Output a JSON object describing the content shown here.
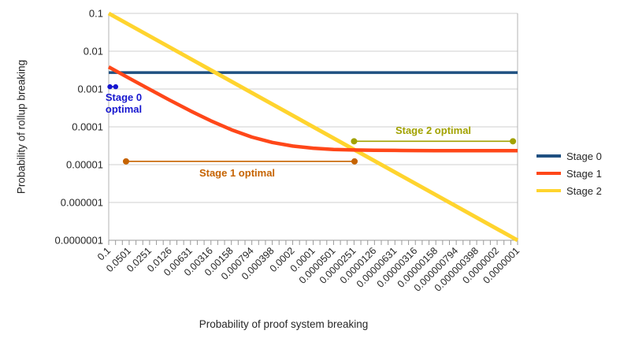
{
  "chart_data": {
    "type": "line",
    "title": "",
    "grid": "horizontal",
    "x_axis": {
      "label": "Probability of proof system breaking",
      "scale": "log",
      "min": 1e-07,
      "max": 0.1,
      "tick_labels": [
        "0.1",
        "0.0501",
        "0.0251",
        "0.0126",
        "0.00631",
        "0.00316",
        "0.00158",
        "0.000794",
        "0.000398",
        "0.0002",
        "0.0001",
        "0.0000501",
        "0.0000251",
        "0.0000126",
        "0.00000631",
        "0.00000316",
        "0.00000158",
        "0.000000794",
        "0.000000398",
        "0.0000002",
        "0.0000001"
      ]
    },
    "y_axis": {
      "label": "Probability of rollup breaking",
      "scale": "log",
      "min": 1e-07,
      "max": 0.1,
      "tick_labels": [
        "0.1",
        "0.01",
        "0.001",
        "0.0001",
        "0.00001",
        "0.000001",
        "0.0000001"
      ]
    },
    "legend": {
      "position": "right"
    },
    "series": [
      {
        "name": "Stage 0",
        "color": "#1f5081",
        "points": [
          [
            0.1,
            0.00273
          ],
          [
            1e-07,
            0.00273
          ]
        ]
      },
      {
        "name": "Stage 1",
        "color": "#ff4719",
        "points": [
          [
            0.1,
            0.00383
          ],
          [
            0.0501,
            0.00193
          ],
          [
            0.0251,
            0.00098
          ],
          [
            0.0126,
            0.000503
          ],
          [
            0.00631,
            0.000264
          ],
          [
            0.00316,
            0.000144
          ],
          [
            0.00158,
            8.36e-05
          ],
          [
            0.000794,
            5.37e-05
          ],
          [
            0.000398,
            3.86e-05
          ],
          [
            0.0002,
            3.1e-05
          ],
          [
            0.0001,
            2.72e-05
          ],
          [
            5.01e-05,
            2.53e-05
          ],
          [
            2.51e-05,
            2.44e-05
          ],
          [
            1.26e-05,
            2.39e-05
          ],
          [
            6.31e-06,
            2.38e-05
          ],
          [
            3.16e-06,
            2.36e-05
          ],
          [
            1.58e-06,
            2.35e-05
          ],
          [
            7.94e-07,
            2.34e-05
          ],
          [
            3.98e-07,
            2.34e-05
          ],
          [
            2e-07,
            2.34e-05
          ],
          [
            1e-07,
            2.34e-05
          ]
        ]
      },
      {
        "name": "Stage 2",
        "color": "#ffd42e",
        "points": [
          [
            0.1,
            0.1
          ],
          [
            1e-07,
            1e-07
          ]
        ]
      }
    ],
    "annotations": [
      {
        "label": "Stage 0 optimal",
        "color": "#1717cf",
        "x_start": 0.096,
        "x_end": 0.079,
        "y": 0.00115
      },
      {
        "label": "Stage 1 optimal",
        "color": "#c66300",
        "x_start": 0.0557,
        "x_end": 2.47e-05,
        "y": 1.22e-05
      },
      {
        "label": "Stage 2 optimal",
        "color": "#a2a200",
        "x_start": 2.51e-05,
        "x_end": 1.17e-07,
        "y": 4.15e-05
      }
    ]
  }
}
